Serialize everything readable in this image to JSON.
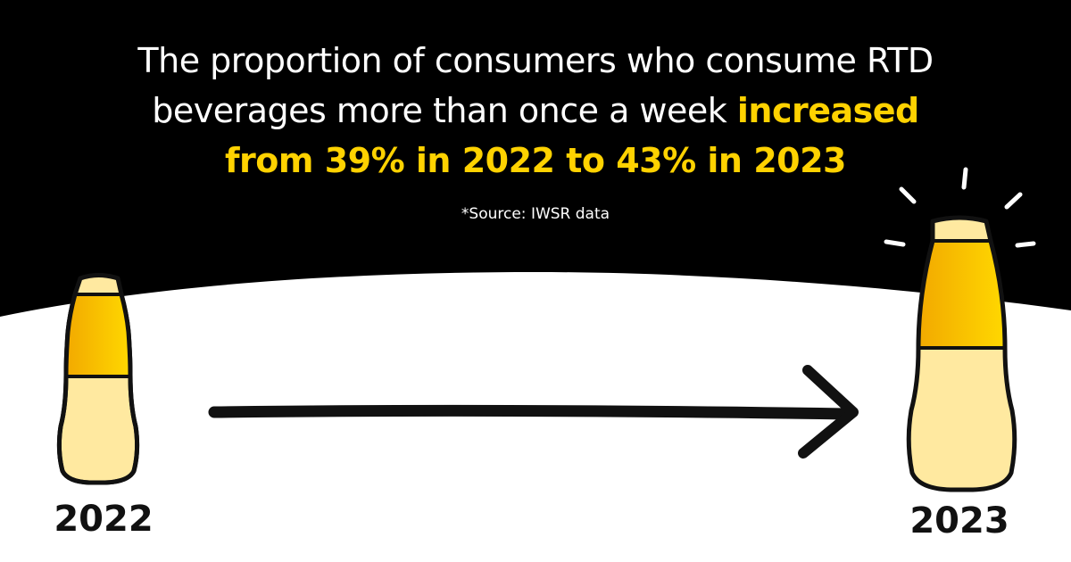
{
  "headline": {
    "line1": "The proportion of consumers who consume RTD",
    "line2_plain": "beverages more than once a week ",
    "line2_highlight": "increased",
    "line3_highlight": "from 39% in 2022 to 43% in 2023"
  },
  "source": "*Source: IWSR data",
  "years": {
    "left": "2022",
    "right": "2023"
  },
  "colors": {
    "background_dark": "#000000",
    "background_light": "#ffffff",
    "highlight": "#ffd200",
    "liquid_cap": "#ffe9a0",
    "liquid_band": "#f5b400",
    "liquid_body": "#ffe9a0",
    "outline": "#111111"
  },
  "icons": {
    "left": "bottle-icon",
    "right": "bottle-icon",
    "arrow": "arrow-right-icon",
    "shine": "shine-rays-icon"
  }
}
